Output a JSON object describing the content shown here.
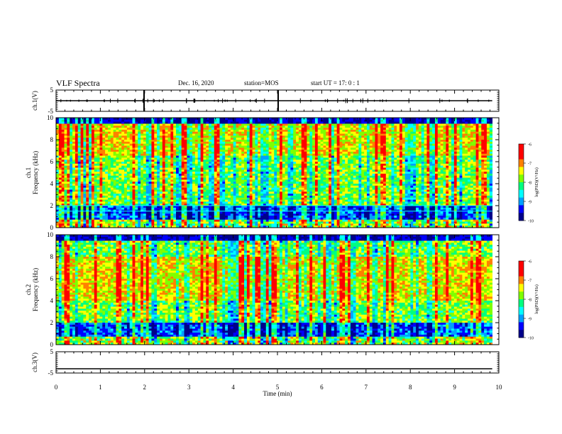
{
  "header": {
    "title": "VLF Spectra",
    "date": "Dec. 16, 2020",
    "station": "station=MOS",
    "start_ut": "start  UT =   17: 0  : 1"
  },
  "chart_data": {
    "type": "heatmap",
    "xlabel": "Time  (min)",
    "xlim": [
      0,
      10
    ],
    "xticks": [
      "0",
      "1",
      "2",
      "3",
      "4",
      "5",
      "6",
      "7",
      "8",
      "9",
      "10"
    ],
    "data_end_min": 9.85,
    "panels": [
      {
        "name": "ch.1 waveform",
        "ylabel": "ch.1(V)",
        "ylim": [
          -5,
          5
        ],
        "yticks": [
          "5",
          "-5"
        ],
        "trace_level_v": 0
      },
      {
        "name": "ch.1 spectrogram",
        "ylabel_line1": "ch.1",
        "ylabel_line2": "Frequency  (kHz)",
        "ylim": [
          0,
          10
        ],
        "yticks": [
          "0",
          "2",
          "4",
          "6",
          "8",
          "10"
        ],
        "colorbar_label": "log(PSD)(V²/Hz)",
        "colorbar_range": [
          -10,
          -6
        ],
        "colorbar_ticks": [
          "-6",
          "-7",
          "-8",
          "-9",
          "-10"
        ],
        "features": {
          "quiet_band_khz": [
            0.7,
            2.0
          ],
          "band_line_khz": [
            1.5,
            2.0
          ],
          "strong_band_khz": [
            6.5,
            9.5
          ],
          "cutoff_khz": 9.5
        }
      },
      {
        "name": "ch.2 spectrogram",
        "ylabel_line1": "ch.2",
        "ylabel_line2": "Frequency  (kHz)",
        "ylim": [
          0,
          10
        ],
        "yticks": [
          "0",
          "2",
          "4",
          "6",
          "8",
          "10"
        ],
        "colorbar_label": "log(PSD)(V²/Hz)",
        "colorbar_range": [
          -10,
          -6
        ],
        "colorbar_ticks": [
          "-6",
          "-7",
          "-8",
          "-9",
          "-10"
        ],
        "features": {
          "quiet_band_khz": [
            0.7,
            2.0
          ],
          "strong_band_khz": [
            4.0,
            8.0
          ],
          "cutoff_khz": 9.5
        }
      },
      {
        "name": "ch.3 waveform",
        "ylabel": "ch.3(V)",
        "ylim": [
          -5,
          5
        ],
        "yticks": [
          "5",
          "-5"
        ],
        "trace_level_v": -3
      }
    ],
    "colormap": [
      "#00008b",
      "#0000ff",
      "#00a0ff",
      "#00ffff",
      "#00ff7f",
      "#7fff00",
      "#ffff00",
      "#ff8000",
      "#ff0000",
      "#ff0000"
    ]
  }
}
